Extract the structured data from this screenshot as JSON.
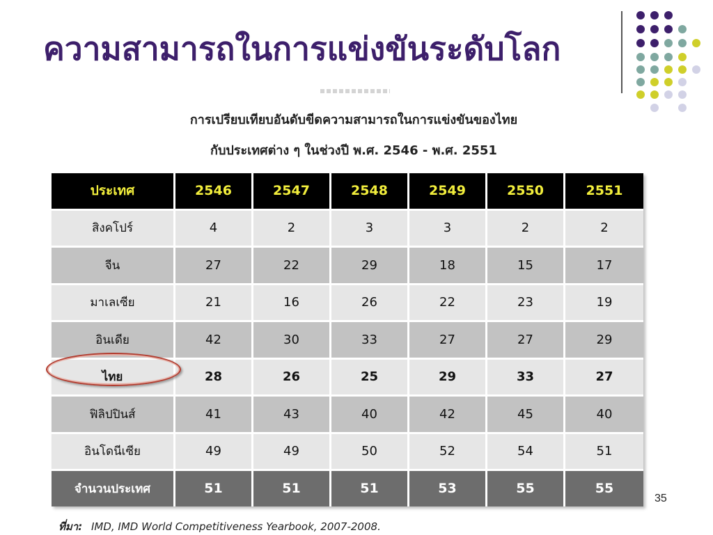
{
  "slide": {
    "title": "ความสามารถในการแข่งขันระดับโลก",
    "page_number": "35"
  },
  "subtitle": {
    "line1": "การเปรียบเทียบอันดับขีดความสามารถในการแข่งขันของไทย",
    "line2": "กับประเทศต่าง ๆ ในช่วงปี พ.ศ. 2546 - พ.ศ. 2551"
  },
  "table": {
    "headers": [
      "ประเทศ",
      "2546",
      "2547",
      "2548",
      "2549",
      "2550",
      "2551"
    ],
    "rows": [
      {
        "country": "สิงคโปร์",
        "values": [
          "4",
          "2",
          "3",
          "3",
          "2",
          "2"
        ]
      },
      {
        "country": "จีน",
        "values": [
          "27",
          "22",
          "29",
          "18",
          "15",
          "17"
        ]
      },
      {
        "country": "มาเลเซีย",
        "values": [
          "21",
          "16",
          "26",
          "22",
          "23",
          "19"
        ]
      },
      {
        "country": "อินเดีย",
        "values": [
          "42",
          "30",
          "33",
          "27",
          "27",
          "29"
        ]
      },
      {
        "country": "ไทย",
        "values": [
          "28",
          "26",
          "25",
          "29",
          "33",
          "27"
        ]
      },
      {
        "country": "ฟิลิปปินส์",
        "values": [
          "41",
          "43",
          "40",
          "42",
          "45",
          "40"
        ]
      },
      {
        "country": "อินโดนีเซีย",
        "values": [
          "49",
          "49",
          "50",
          "52",
          "54",
          "51"
        ]
      }
    ],
    "footer": {
      "label": "จำนวนประเทศ",
      "values": [
        "51",
        "51",
        "51",
        "53",
        "55",
        "55"
      ]
    }
  },
  "source": {
    "label": "ที่มา:",
    "text": "IMD, IMD World Competitiveness Yearbook, 2007-2008."
  },
  "colors": {
    "title": "#3d1f6b",
    "header_bg": "#000000",
    "header_text": "#f2ee3c",
    "row_light": "#e6e6e6",
    "row_dark": "#c2c2c2",
    "footer_bg": "#6d6d6d",
    "ellipse": "#b23b2e",
    "dot_purple": "#3d1f6b",
    "dot_teal": "#7fa8a0",
    "dot_yellow": "#cfcf2a",
    "dot_lavender": "#d2d2e6"
  }
}
